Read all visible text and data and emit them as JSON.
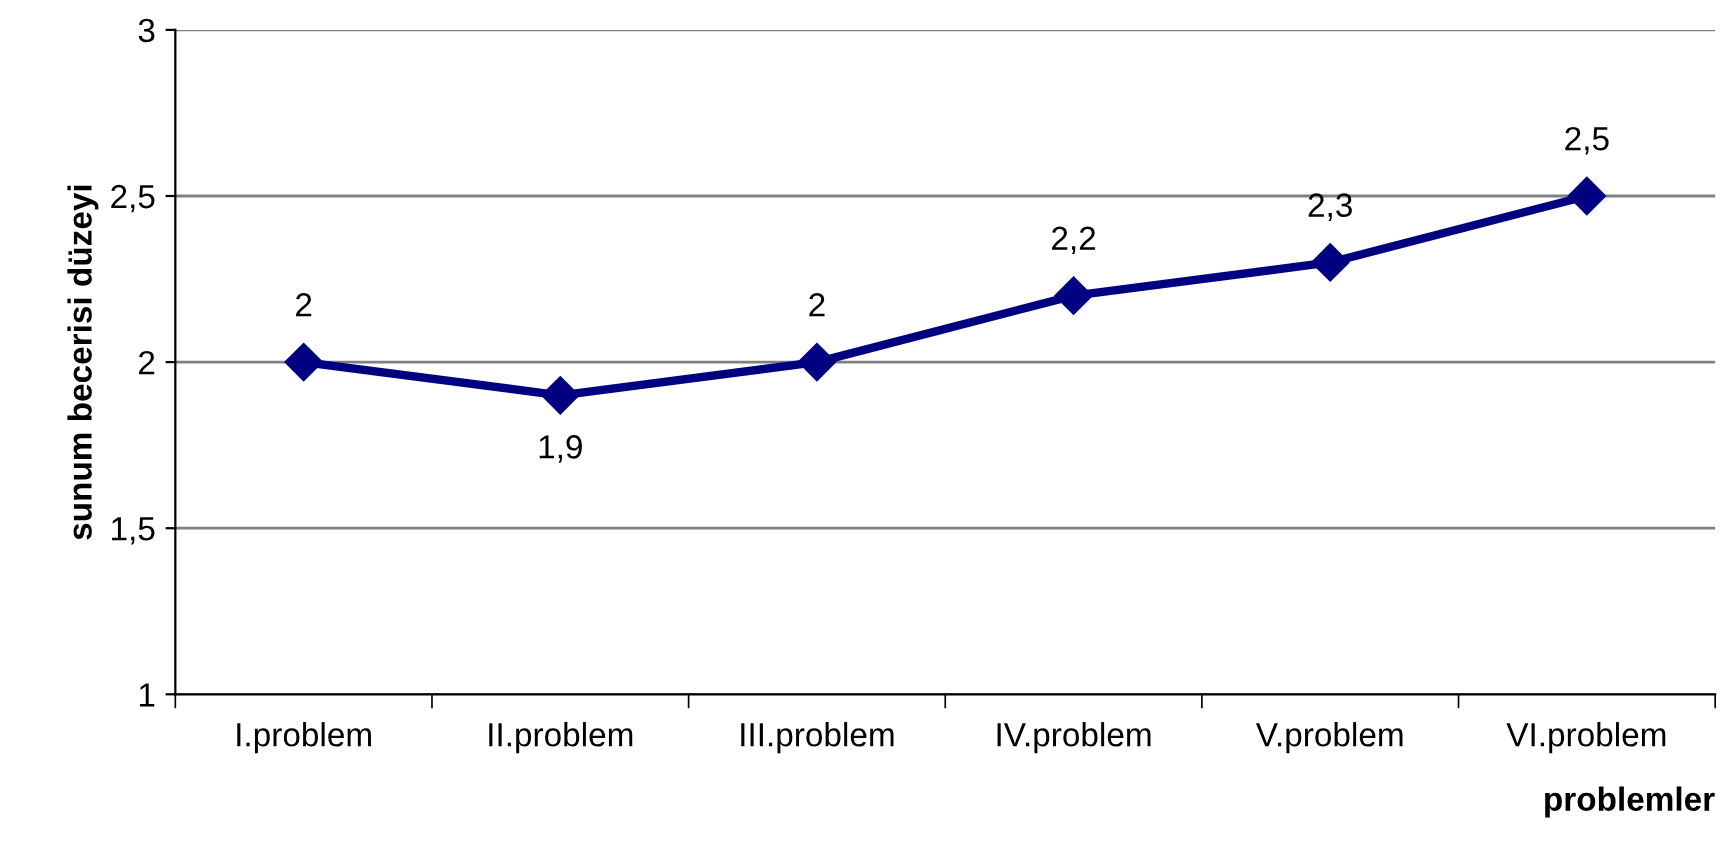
{
  "chart_data": {
    "type": "line",
    "xlabel": "problemler",
    "ylabel": "sunum becerisi düzeyi",
    "categories": [
      "I.problem",
      "II.problem",
      "III.problem",
      "IV.problem",
      "V.problem",
      "VI.problem"
    ],
    "series": [
      {
        "color": "#000080",
        "values": [
          2,
          1.9,
          2,
          2.2,
          2.3,
          2.5
        ],
        "value_labels": [
          "2",
          "1,9",
          "2",
          "2,2",
          "2,3",
          "2,5"
        ]
      }
    ],
    "ylim": [
      1,
      3
    ],
    "yticks": [
      1,
      {
        "value": 1.5,
        "label": "1,5"
      },
      2,
      {
        "value": 2.5,
        "label": "2,5"
      },
      3
    ],
    "grid": "y",
    "marker": "diamond",
    "line_style": "solid"
  }
}
